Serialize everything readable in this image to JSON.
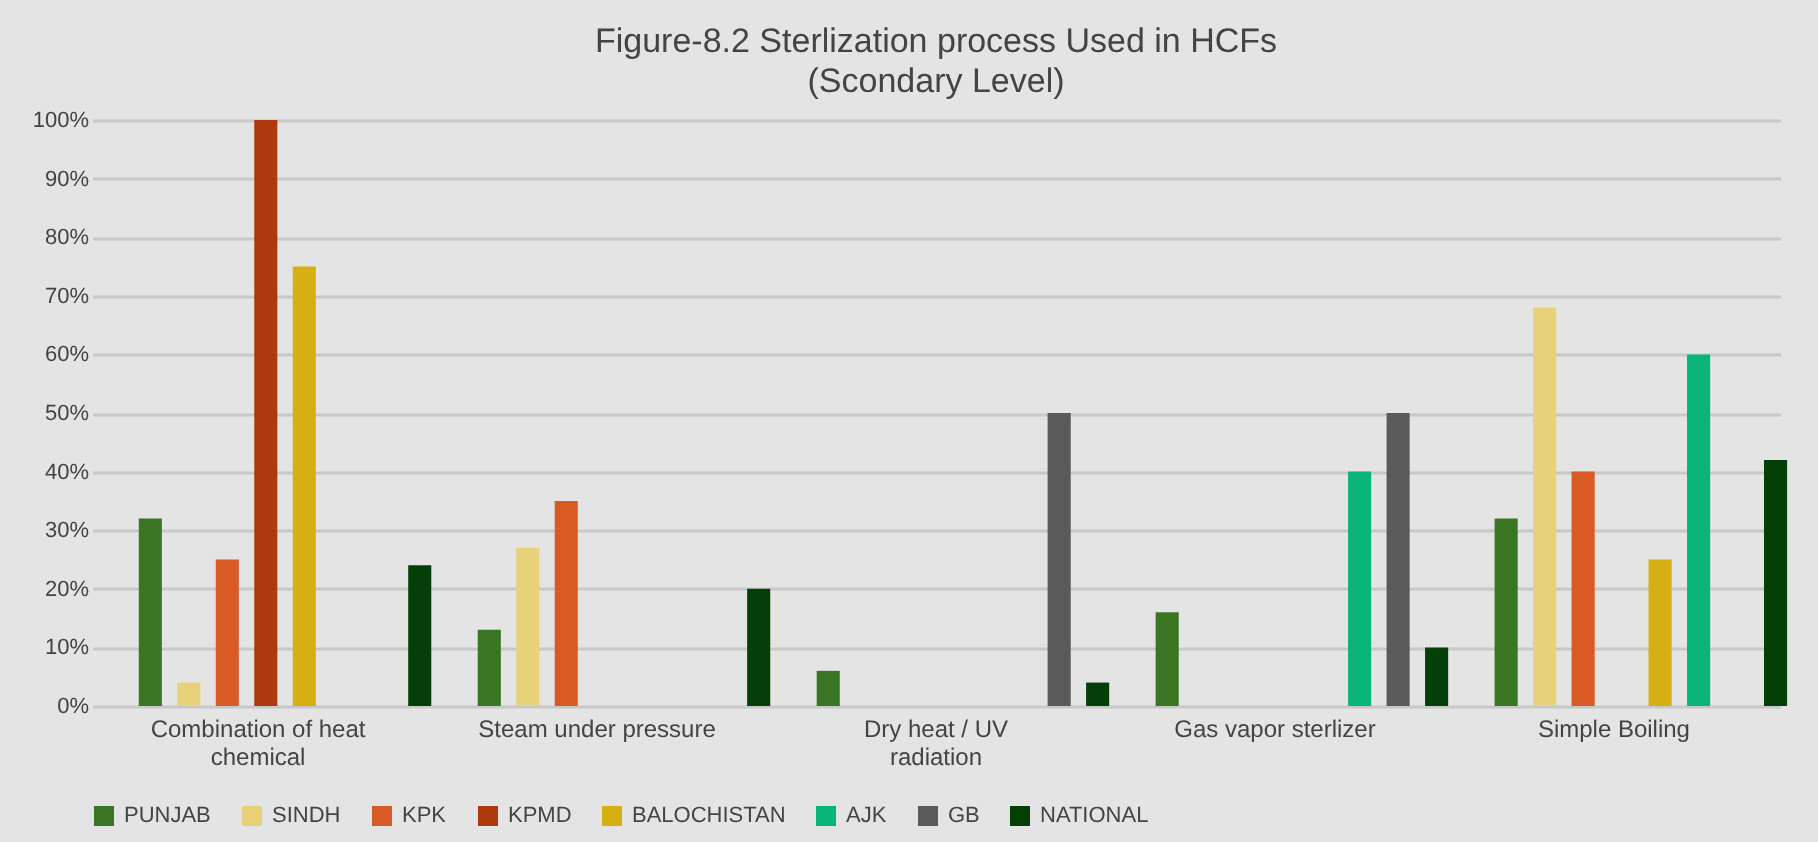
{
  "chart_data": {
    "type": "bar",
    "title": "Figure-8.2 Sterlization process Used in HCFs",
    "subtitle": "(Scondary Level)",
    "categories": [
      "Combination of heat chemical",
      "Steam under pressure",
      "Dry heat / UV radiation",
      "Gas vapor sterlizer",
      "Simple Boiling"
    ],
    "series": [
      {
        "name": "PUNJAB",
        "color": "#3a7523",
        "values": [
          32,
          13,
          6,
          16,
          32
        ]
      },
      {
        "name": "SINDH",
        "color": "#e8d279",
        "values": [
          4,
          27,
          null,
          null,
          68
        ]
      },
      {
        "name": "KPK",
        "color": "#d95a23",
        "values": [
          25,
          35,
          null,
          null,
          40
        ]
      },
      {
        "name": "KPMD",
        "color": "#ad3a0e",
        "values": [
          100,
          null,
          null,
          null,
          null
        ]
      },
      {
        "name": "BALOCHISTAN",
        "color": "#d6b013",
        "values": [
          75,
          null,
          null,
          null,
          25
        ]
      },
      {
        "name": "AJK",
        "color": "#08b577",
        "values": [
          null,
          null,
          null,
          40,
          60
        ]
      },
      {
        "name": "GB",
        "color": "#5a5a5a",
        "values": [
          null,
          null,
          50,
          50,
          null
        ]
      },
      {
        "name": "NATIONAL",
        "color": "#053f08",
        "values": [
          24,
          20,
          4,
          10,
          42
        ]
      }
    ],
    "ylim": [
      0,
      100
    ],
    "yticks": [
      {
        "value": 0,
        "label": "0%"
      },
      {
        "value": 10,
        "label": "10%"
      },
      {
        "value": 20,
        "label": "20%"
      },
      {
        "value": 30,
        "label": "30%"
      },
      {
        "value": 40,
        "label": "40%"
      },
      {
        "value": 50,
        "label": "50%"
      },
      {
        "value": 60,
        "label": "60%"
      },
      {
        "value": 70,
        "label": "70%"
      },
      {
        "value": 80,
        "label": "80%"
      },
      {
        "value": 90,
        "label": "90%"
      },
      {
        "value": 100,
        "label": "100%"
      }
    ],
    "grid": "y",
    "legend": "bottom"
  }
}
